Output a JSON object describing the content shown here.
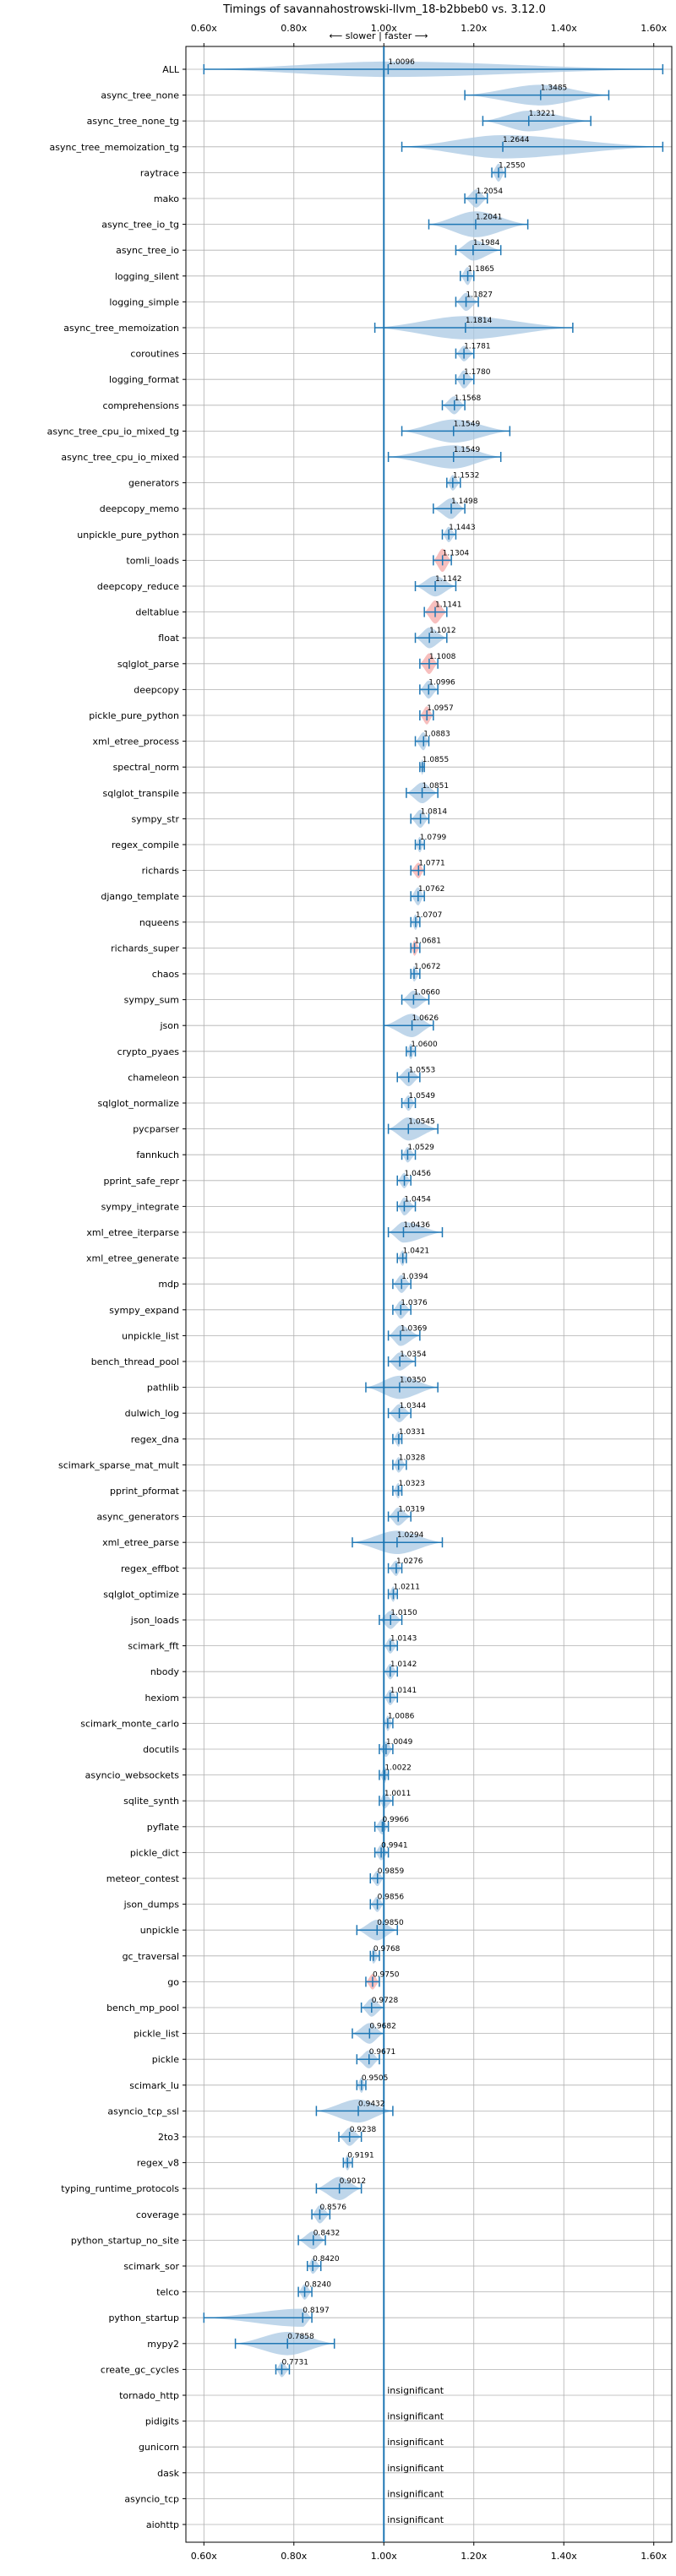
{
  "chart_data": {
    "type": "violin",
    "title": "Timings of savannahostrowski-llvm_18-b2bbeb0 vs. 3.12.0",
    "annotation": "⟵ slower | faster ⟶",
    "xlim": [
      0.56,
      1.64
    ],
    "x_ticks": [
      0.6,
      0.8,
      1.0,
      1.2,
      1.4,
      1.6
    ],
    "x_tick_labels": [
      "0.60x",
      "0.80x",
      "1.00x",
      "1.20x",
      "1.40x",
      "1.60x"
    ],
    "reference_line": 1.0,
    "grid": true,
    "colors": {
      "faster": "#a9c8e3",
      "slower": "#f4a9a8",
      "line": "#1f77b4"
    },
    "insignificant_label": "insignificant",
    "benchmarks": [
      {
        "name": "ALL",
        "value": 1.0096,
        "value_label": "1.0096",
        "min": 0.6,
        "max": 1.62,
        "width": 0.3
      },
      {
        "name": "async_tree_none",
        "value": 1.3485,
        "value_label": "1.3485",
        "min": 1.18,
        "max": 1.5,
        "width": 0.4
      },
      {
        "name": "async_tree_none_tg",
        "value": 1.3221,
        "value_label": "1.3221",
        "min": 1.22,
        "max": 1.46,
        "width": 0.4
      },
      {
        "name": "async_tree_memoization_tg",
        "value": 1.2644,
        "value_label": "1.2644",
        "min": 1.04,
        "max": 1.62,
        "width": 0.45
      },
      {
        "name": "raytrace",
        "value": 1.255,
        "value_label": "1.2550",
        "min": 1.24,
        "max": 1.27,
        "width": 0.35
      },
      {
        "name": "mako",
        "value": 1.2054,
        "value_label": "1.2054",
        "min": 1.18,
        "max": 1.23,
        "width": 0.35
      },
      {
        "name": "async_tree_io_tg",
        "value": 1.2041,
        "value_label": "1.2041",
        "min": 1.1,
        "max": 1.32,
        "width": 0.5
      },
      {
        "name": "async_tree_io",
        "value": 1.1984,
        "value_label": "1.1984",
        "min": 1.16,
        "max": 1.26,
        "width": 0.4
      },
      {
        "name": "logging_silent",
        "value": 1.1865,
        "value_label": "1.1865",
        "min": 1.17,
        "max": 1.2,
        "width": 0.35
      },
      {
        "name": "logging_simple",
        "value": 1.1827,
        "value_label": "1.1827",
        "min": 1.16,
        "max": 1.21,
        "width": 0.35
      },
      {
        "name": "async_tree_memoization",
        "value": 1.1814,
        "value_label": "1.1814",
        "min": 0.98,
        "max": 1.42,
        "width": 0.45
      },
      {
        "name": "coroutines",
        "value": 1.1781,
        "value_label": "1.1781",
        "min": 1.16,
        "max": 1.2,
        "width": 0.3
      },
      {
        "name": "logging_format",
        "value": 1.178,
        "value_label": "1.1780",
        "min": 1.16,
        "max": 1.2,
        "width": 0.35
      },
      {
        "name": "comprehensions",
        "value": 1.1568,
        "value_label": "1.1568",
        "min": 1.13,
        "max": 1.18,
        "width": 0.35
      },
      {
        "name": "async_tree_cpu_io_mixed_tg",
        "value": 1.1549,
        "value_label": "1.1549",
        "min": 1.04,
        "max": 1.28,
        "width": 0.45
      },
      {
        "name": "async_tree_cpu_io_mixed",
        "value": 1.1549,
        "value_label": "1.1549",
        "min": 1.01,
        "max": 1.26,
        "width": 0.45
      },
      {
        "name": "generators",
        "value": 1.1532,
        "value_label": "1.1532",
        "min": 1.14,
        "max": 1.17,
        "width": 0.3
      },
      {
        "name": "deepcopy_memo",
        "value": 1.1498,
        "value_label": "1.1498",
        "min": 1.11,
        "max": 1.18,
        "width": 0.4
      },
      {
        "name": "unpickle_pure_python",
        "value": 1.1443,
        "value_label": "1.1443",
        "min": 1.13,
        "max": 1.16,
        "width": 0.3
      },
      {
        "name": "tomli_loads",
        "value": 1.1304,
        "value_label": "1.1304",
        "min": 1.11,
        "max": 1.15,
        "width": 0.45,
        "slower": true
      },
      {
        "name": "deepcopy_reduce",
        "value": 1.1142,
        "value_label": "1.1142",
        "min": 1.07,
        "max": 1.16,
        "width": 0.4
      },
      {
        "name": "deltablue",
        "value": 1.1141,
        "value_label": "1.1141",
        "min": 1.09,
        "max": 1.14,
        "width": 0.45,
        "slower": true
      },
      {
        "name": "float",
        "value": 1.1012,
        "value_label": "1.1012",
        "min": 1.07,
        "max": 1.14,
        "width": 0.4
      },
      {
        "name": "sqlglot_parse",
        "value": 1.1008,
        "value_label": "1.1008",
        "min": 1.08,
        "max": 1.12,
        "width": 0.4,
        "slower": true
      },
      {
        "name": "deepcopy",
        "value": 1.0996,
        "value_label": "1.0996",
        "min": 1.08,
        "max": 1.12,
        "width": 0.35
      },
      {
        "name": "pickle_pure_python",
        "value": 1.0957,
        "value_label": "1.0957",
        "min": 1.08,
        "max": 1.11,
        "width": 0.35,
        "slower": true
      },
      {
        "name": "xml_etree_process",
        "value": 1.0883,
        "value_label": "1.0883",
        "min": 1.07,
        "max": 1.1,
        "width": 0.35
      },
      {
        "name": "spectral_norm",
        "value": 1.0855,
        "value_label": "1.0855",
        "min": 1.08,
        "max": 1.09,
        "width": 0.3
      },
      {
        "name": "sqlglot_transpile",
        "value": 1.0851,
        "value_label": "1.0851",
        "min": 1.05,
        "max": 1.12,
        "width": 0.4
      },
      {
        "name": "sympy_str",
        "value": 1.0814,
        "value_label": "1.0814",
        "min": 1.06,
        "max": 1.1,
        "width": 0.35
      },
      {
        "name": "regex_compile",
        "value": 1.0799,
        "value_label": "1.0799",
        "min": 1.07,
        "max": 1.09,
        "width": 0.3
      },
      {
        "name": "richards",
        "value": 1.0771,
        "value_label": "1.0771",
        "min": 1.06,
        "max": 1.09,
        "width": 0.3,
        "slower": true
      },
      {
        "name": "django_template",
        "value": 1.0762,
        "value_label": "1.0762",
        "min": 1.06,
        "max": 1.09,
        "width": 0.35
      },
      {
        "name": "nqueens",
        "value": 1.0707,
        "value_label": "1.0707",
        "min": 1.06,
        "max": 1.08,
        "width": 0.3
      },
      {
        "name": "richards_super",
        "value": 1.0681,
        "value_label": "1.0681",
        "min": 1.06,
        "max": 1.08,
        "width": 0.3,
        "slower": true
      },
      {
        "name": "chaos",
        "value": 1.0672,
        "value_label": "1.0672",
        "min": 1.06,
        "max": 1.08,
        "width": 0.3
      },
      {
        "name": "sympy_sum",
        "value": 1.066,
        "value_label": "1.0660",
        "min": 1.04,
        "max": 1.1,
        "width": 0.35
      },
      {
        "name": "json",
        "value": 1.0626,
        "value_label": "1.0626",
        "min": 1.0,
        "max": 1.11,
        "width": 0.45
      },
      {
        "name": "crypto_pyaes",
        "value": 1.06,
        "value_label": "1.0600",
        "min": 1.05,
        "max": 1.07,
        "width": 0.3
      },
      {
        "name": "chameleon",
        "value": 1.0553,
        "value_label": "1.0553",
        "min": 1.03,
        "max": 1.08,
        "width": 0.35
      },
      {
        "name": "sqlglot_normalize",
        "value": 1.0549,
        "value_label": "1.0549",
        "min": 1.04,
        "max": 1.07,
        "width": 0.3
      },
      {
        "name": "pycparser",
        "value": 1.0545,
        "value_label": "1.0545",
        "min": 1.01,
        "max": 1.12,
        "width": 0.45
      },
      {
        "name": "fannkuch",
        "value": 1.0529,
        "value_label": "1.0529",
        "min": 1.04,
        "max": 1.07,
        "width": 0.3
      },
      {
        "name": "pprint_safe_repr",
        "value": 1.0456,
        "value_label": "1.0456",
        "min": 1.03,
        "max": 1.06,
        "width": 0.3
      },
      {
        "name": "sympy_integrate",
        "value": 1.0454,
        "value_label": "1.0454",
        "min": 1.03,
        "max": 1.07,
        "width": 0.35
      },
      {
        "name": "xml_etree_iterparse",
        "value": 1.0436,
        "value_label": "1.0436",
        "min": 1.01,
        "max": 1.13,
        "width": 0.4
      },
      {
        "name": "xml_etree_generate",
        "value": 1.0421,
        "value_label": "1.0421",
        "min": 1.03,
        "max": 1.05,
        "width": 0.3
      },
      {
        "name": "mdp",
        "value": 1.0394,
        "value_label": "1.0394",
        "min": 1.02,
        "max": 1.06,
        "width": 0.35
      },
      {
        "name": "sympy_expand",
        "value": 1.0376,
        "value_label": "1.0376",
        "min": 1.02,
        "max": 1.06,
        "width": 0.35
      },
      {
        "name": "unpickle_list",
        "value": 1.0369,
        "value_label": "1.0369",
        "min": 1.01,
        "max": 1.08,
        "width": 0.4
      },
      {
        "name": "bench_thread_pool",
        "value": 1.0354,
        "value_label": "1.0354",
        "min": 1.01,
        "max": 1.07,
        "width": 0.35
      },
      {
        "name": "pathlib",
        "value": 1.035,
        "value_label": "1.0350",
        "min": 0.96,
        "max": 1.12,
        "width": 0.45
      },
      {
        "name": "dulwich_log",
        "value": 1.0344,
        "value_label": "1.0344",
        "min": 1.01,
        "max": 1.06,
        "width": 0.35
      },
      {
        "name": "regex_dna",
        "value": 1.0331,
        "value_label": "1.0331",
        "min": 1.02,
        "max": 1.04,
        "width": 0.3
      },
      {
        "name": "scimark_sparse_mat_mult",
        "value": 1.0328,
        "value_label": "1.0328",
        "min": 1.02,
        "max": 1.05,
        "width": 0.3
      },
      {
        "name": "pprint_pformat",
        "value": 1.0323,
        "value_label": "1.0323",
        "min": 1.02,
        "max": 1.04,
        "width": 0.3
      },
      {
        "name": "async_generators",
        "value": 1.0319,
        "value_label": "1.0319",
        "min": 1.01,
        "max": 1.06,
        "width": 0.35
      },
      {
        "name": "xml_etree_parse",
        "value": 1.0294,
        "value_label": "1.0294",
        "min": 0.93,
        "max": 1.13,
        "width": 0.45
      },
      {
        "name": "regex_effbot",
        "value": 1.0276,
        "value_label": "1.0276",
        "min": 1.01,
        "max": 1.04,
        "width": 0.3
      },
      {
        "name": "sqlglot_optimize",
        "value": 1.0211,
        "value_label": "1.0211",
        "min": 1.01,
        "max": 1.03,
        "width": 0.3
      },
      {
        "name": "json_loads",
        "value": 1.015,
        "value_label": "1.0150",
        "min": 0.99,
        "max": 1.04,
        "width": 0.35
      },
      {
        "name": "scimark_fft",
        "value": 1.0143,
        "value_label": "1.0143",
        "min": 1.0,
        "max": 1.03,
        "width": 0.3
      },
      {
        "name": "nbody",
        "value": 1.0142,
        "value_label": "1.0142",
        "min": 1.0,
        "max": 1.03,
        "width": 0.3
      },
      {
        "name": "hexiom",
        "value": 1.0141,
        "value_label": "1.0141",
        "min": 1.0,
        "max": 1.03,
        "width": 0.3
      },
      {
        "name": "scimark_monte_carlo",
        "value": 1.0086,
        "value_label": "1.0086",
        "min": 1.0,
        "max": 1.02,
        "width": 0.3
      },
      {
        "name": "docutils",
        "value": 1.0049,
        "value_label": "1.0049",
        "min": 0.99,
        "max": 1.02,
        "width": 0.3
      },
      {
        "name": "asyncio_websockets",
        "value": 1.0022,
        "value_label": "1.0022",
        "min": 0.99,
        "max": 1.01,
        "width": 0.3
      },
      {
        "name": "sqlite_synth",
        "value": 1.0011,
        "value_label": "1.0011",
        "min": 0.99,
        "max": 1.02,
        "width": 0.3
      },
      {
        "name": "pyflate",
        "value": 0.9966,
        "value_label": "0.9966",
        "min": 0.98,
        "max": 1.01,
        "width": 0.3
      },
      {
        "name": "pickle_dict",
        "value": 0.9941,
        "value_label": "0.9941",
        "min": 0.98,
        "max": 1.01,
        "width": 0.3
      },
      {
        "name": "meteor_contest",
        "value": 0.9859,
        "value_label": "0.9859",
        "min": 0.97,
        "max": 1.0,
        "width": 0.3
      },
      {
        "name": "json_dumps",
        "value": 0.9856,
        "value_label": "0.9856",
        "min": 0.97,
        "max": 1.0,
        "width": 0.3
      },
      {
        "name": "unpickle",
        "value": 0.985,
        "value_label": "0.9850",
        "min": 0.94,
        "max": 1.03,
        "width": 0.4
      },
      {
        "name": "gc_traversal",
        "value": 0.9768,
        "value_label": "0.9768",
        "min": 0.97,
        "max": 0.99,
        "width": 0.3
      },
      {
        "name": "go",
        "value": 0.975,
        "value_label": "0.9750",
        "min": 0.96,
        "max": 0.99,
        "width": 0.3,
        "slower": true
      },
      {
        "name": "bench_mp_pool",
        "value": 0.9728,
        "value_label": "0.9728",
        "min": 0.95,
        "max": 1.0,
        "width": 0.35
      },
      {
        "name": "pickle_list",
        "value": 0.9682,
        "value_label": "0.9682",
        "min": 0.93,
        "max": 1.0,
        "width": 0.4
      },
      {
        "name": "pickle",
        "value": 0.9671,
        "value_label": "0.9671",
        "min": 0.94,
        "max": 0.99,
        "width": 0.35
      },
      {
        "name": "scimark_lu",
        "value": 0.9505,
        "value_label": "0.9505",
        "min": 0.94,
        "max": 0.96,
        "width": 0.3
      },
      {
        "name": "asyncio_tcp_ssl",
        "value": 0.9432,
        "value_label": "0.9432",
        "min": 0.85,
        "max": 1.02,
        "width": 0.45
      },
      {
        "name": "2to3",
        "value": 0.9238,
        "value_label": "0.9238",
        "min": 0.9,
        "max": 0.95,
        "width": 0.35
      },
      {
        "name": "regex_v8",
        "value": 0.9191,
        "value_label": "0.9191",
        "min": 0.91,
        "max": 0.93,
        "width": 0.3
      },
      {
        "name": "typing_runtime_protocols",
        "value": 0.9012,
        "value_label": "0.9012",
        "min": 0.85,
        "max": 0.95,
        "width": 0.45
      },
      {
        "name": "coverage",
        "value": 0.8576,
        "value_label": "0.8576",
        "min": 0.84,
        "max": 0.88,
        "width": 0.35
      },
      {
        "name": "python_startup_no_site",
        "value": 0.8432,
        "value_label": "0.8432",
        "min": 0.81,
        "max": 0.87,
        "width": 0.35
      },
      {
        "name": "scimark_sor",
        "value": 0.842,
        "value_label": "0.8420",
        "min": 0.83,
        "max": 0.86,
        "width": 0.3
      },
      {
        "name": "telco",
        "value": 0.824,
        "value_label": "0.8240",
        "min": 0.81,
        "max": 0.84,
        "width": 0.3
      },
      {
        "name": "python_startup",
        "value": 0.8197,
        "value_label": "0.8197",
        "min": 0.6,
        "max": 0.84,
        "width": 0.35
      },
      {
        "name": "mypy2",
        "value": 0.7858,
        "value_label": "0.7858",
        "min": 0.67,
        "max": 0.89,
        "width": 0.45
      },
      {
        "name": "create_gc_cycles",
        "value": 0.7731,
        "value_label": "0.7731",
        "min": 0.76,
        "max": 0.79,
        "width": 0.3
      },
      {
        "name": "tornado_http",
        "insignificant": true
      },
      {
        "name": "pidigits",
        "insignificant": true
      },
      {
        "name": "gunicorn",
        "insignificant": true
      },
      {
        "name": "dask",
        "insignificant": true
      },
      {
        "name": "asyncio_tcp",
        "insignificant": true
      },
      {
        "name": "aiohttp",
        "insignificant": true
      }
    ]
  }
}
